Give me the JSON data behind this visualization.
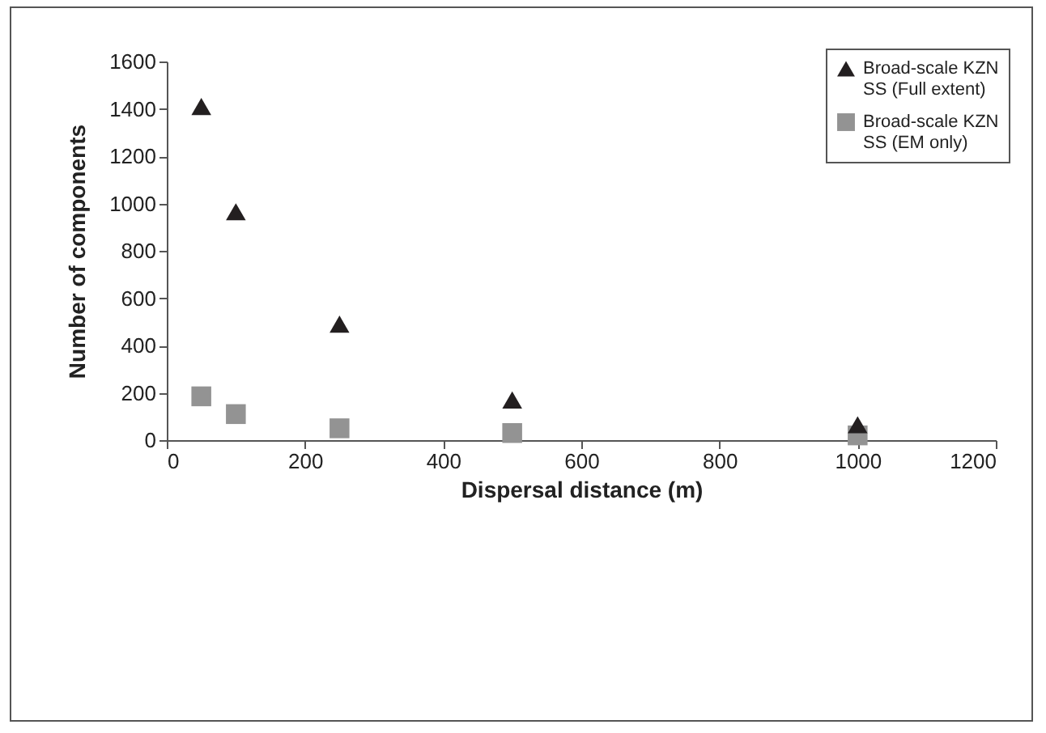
{
  "chart_data": {
    "type": "scatter",
    "xlabel": "Dispersal distance (m)",
    "ylabel": "Number of components",
    "x": [
      50,
      100,
      250,
      500,
      1000
    ],
    "series": [
      {
        "name": "Broad-scale KZN SS (Full extent)",
        "color": "#231f20",
        "marker": "triangle",
        "values": [
          1410,
          965,
          490,
          170,
          65
        ]
      },
      {
        "name": "Broad-scale KZN SS (EM only)",
        "color": "#939393",
        "marker": "square",
        "values": [
          185,
          110,
          50,
          30,
          20
        ]
      }
    ],
    "xlim": [
      0,
      1200
    ],
    "xticks": [
      0,
      200,
      400,
      600,
      800,
      1000,
      1200
    ],
    "ylim": [
      0,
      1600
    ],
    "yticks": [
      0,
      200,
      400,
      600,
      800,
      1000,
      1200,
      1400,
      1600
    ],
    "grid": false,
    "legend": "top right"
  }
}
